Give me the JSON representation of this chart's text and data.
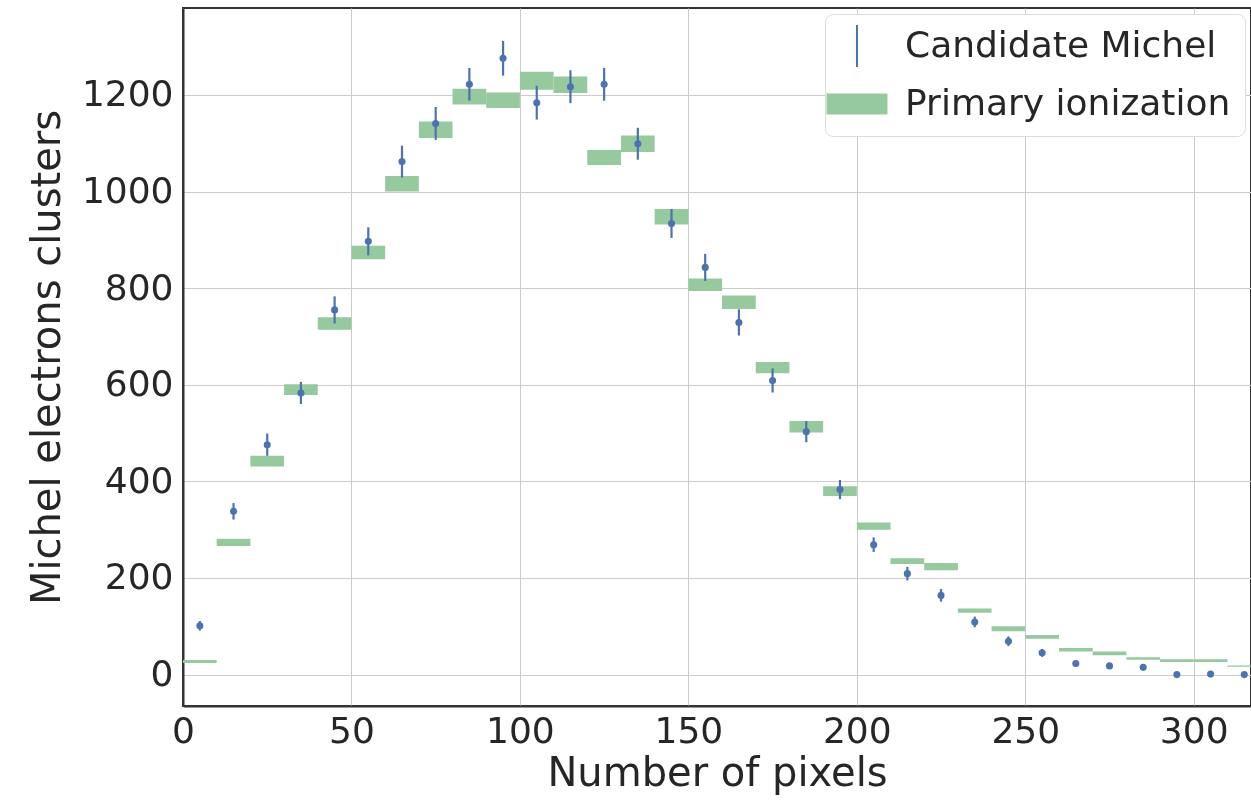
{
  "chart_data": {
    "type": "scatter",
    "xlabel": "Number of pixels",
    "ylabel": "Michel electrons clusters",
    "xlim": [
      0,
      317
    ],
    "ylim": [
      -65,
      1380
    ],
    "xticks": [
      0,
      50,
      100,
      150,
      200,
      250,
      300
    ],
    "yticks": [
      0,
      200,
      400,
      600,
      800,
      1000,
      1200
    ],
    "grid": true,
    "legend": "top right",
    "marker": "circle",
    "x": [
      5,
      15,
      25,
      35,
      45,
      55,
      65,
      75,
      85,
      95,
      105,
      115,
      125,
      135,
      145,
      155,
      165,
      175,
      185,
      195,
      205,
      215,
      225,
      235,
      245,
      255,
      265,
      275,
      285,
      295,
      305,
      315
    ],
    "series": [
      {
        "name": "Candidate Michel",
        "color": "#4c72b0",
        "values": [
          101,
          338,
          476,
          583,
          755,
          897,
          1062,
          1141,
          1222,
          1276,
          1184,
          1217,
          1222,
          1099,
          934,
          843,
          729,
          609,
          503,
          383,
          269,
          209,
          164,
          109,
          69,
          45,
          23,
          18,
          15,
          0,
          1,
          0
        ],
        "errors": [
          10,
          17,
          23,
          23,
          28,
          29,
          33,
          34,
          34,
          36,
          35,
          34,
          34,
          33,
          30,
          28,
          27,
          25,
          22,
          20,
          15,
          14,
          13,
          11,
          10,
          8,
          6,
          5,
          5,
          4,
          4,
          4
        ]
      },
      {
        "name": "Primary ionization",
        "type": "bar",
        "color": "#97c99f",
        "base": [
          24,
          266,
          431,
          579,
          714,
          860,
          1000,
          1111,
          1180,
          1173,
          1211,
          1204,
          1055,
          1082,
          932,
          794,
          757,
          624,
          501,
          370,
          300,
          229,
          216,
          128,
          90,
          74,
          48,
          40,
          31,
          26,
          26,
          16
        ],
        "values": [
          6,
          15,
          22,
          22,
          26,
          28,
          32,
          34,
          33,
          32,
          37,
          34,
          31,
          34,
          32,
          26,
          28,
          23,
          24,
          20,
          15,
          12,
          15,
          9,
          10,
          8,
          7,
          8,
          5,
          6,
          6,
          3
        ]
      }
    ]
  }
}
